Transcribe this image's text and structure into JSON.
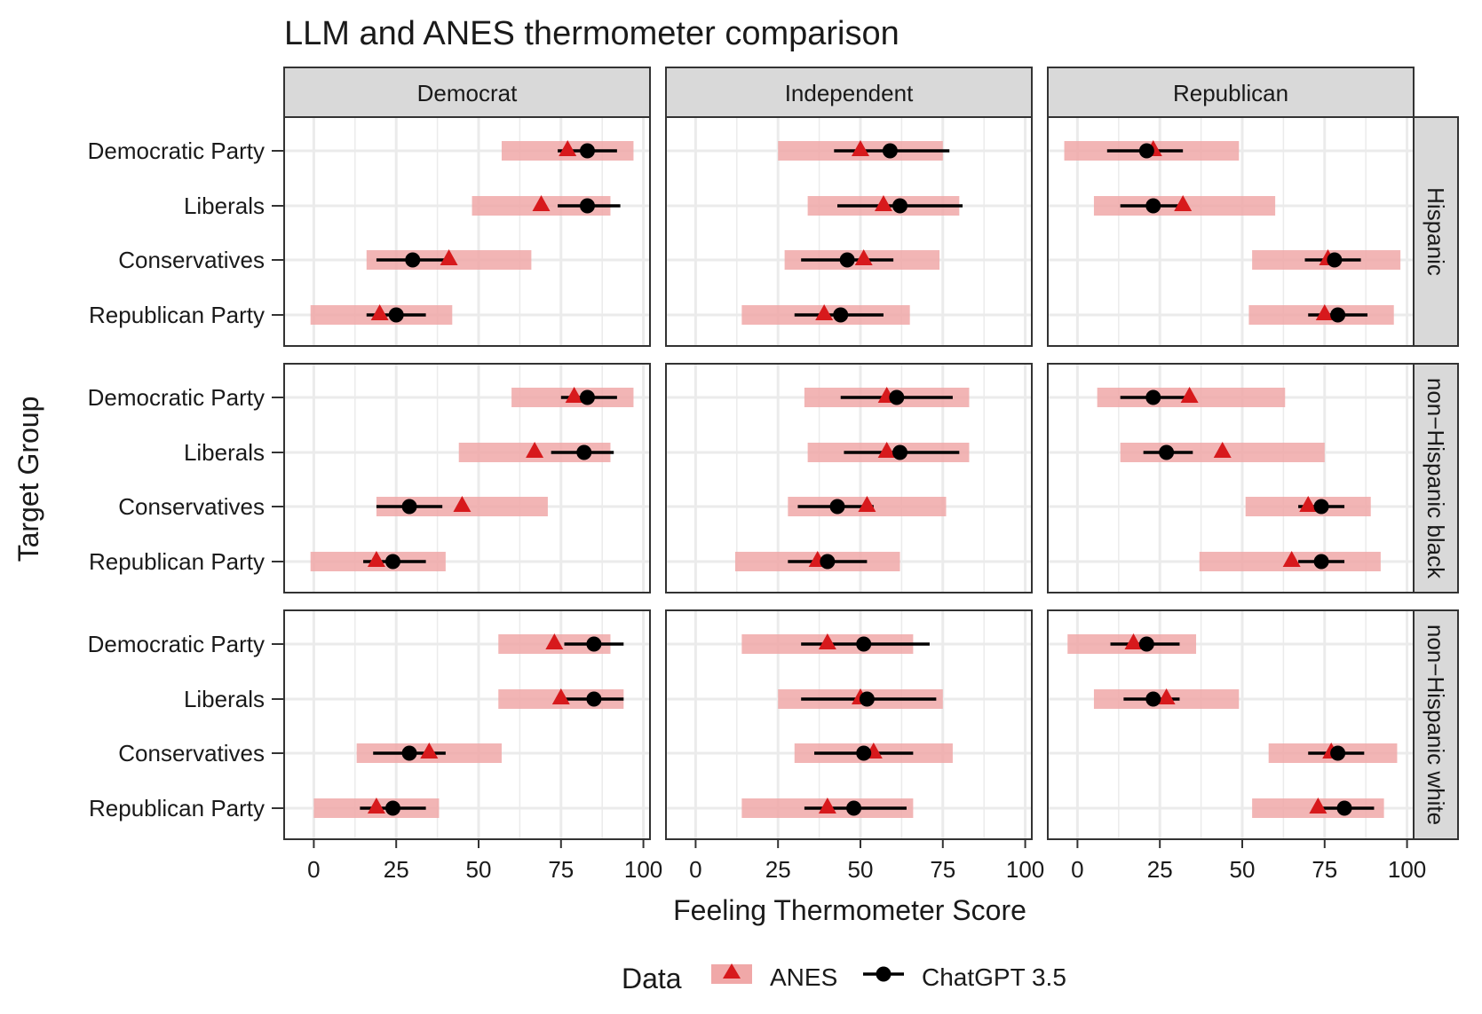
{
  "chart_data": {
    "type": "dot-range",
    "title": "LLM and ANES thermometer comparison",
    "xlabel": "Feeling Thermometer Score",
    "ylabel": "Target Group",
    "xlim": [
      -9,
      102
    ],
    "x_ticks": [
      0,
      25,
      50,
      75,
      100
    ],
    "x_tick_labels": [
      "0",
      "25",
      "50",
      "75",
      "100"
    ],
    "grid": true,
    "legend": {
      "title": "Data",
      "position": "bottom",
      "entries": [
        "ANES",
        "ChatGPT 3.5"
      ]
    },
    "col_facets": [
      "Democrat",
      "Independent",
      "Republican"
    ],
    "row_facets": [
      "Hispanic",
      "non−Hispanic black",
      "non−Hispanic white"
    ],
    "categories": [
      "Democratic Party",
      "Liberals",
      "Conservatives",
      "Republican Party"
    ],
    "colors": {
      "anes": "#d7191c",
      "anes_band": "#f0a8a8",
      "chatgpt": "#000000",
      "strip": "#d9d9d9",
      "grid": "#ebebeb"
    },
    "panels": [
      {
        "row": "Hispanic",
        "col": "Democrat",
        "items": [
          {
            "category": "Democratic Party",
            "anes": {
              "value": 77,
              "low": 57,
              "high": 97
            },
            "chatgpt": {
              "value": 83,
              "low": 74,
              "high": 92
            }
          },
          {
            "category": "Liberals",
            "anes": {
              "value": 69,
              "low": 48,
              "high": 90
            },
            "chatgpt": {
              "value": 83,
              "low": 74,
              "high": 93
            }
          },
          {
            "category": "Conservatives",
            "anes": {
              "value": 41,
              "low": 16,
              "high": 66
            },
            "chatgpt": {
              "value": 30,
              "low": 19,
              "high": 41
            }
          },
          {
            "category": "Republican Party",
            "anes": {
              "value": 20,
              "low": -1,
              "high": 42
            },
            "chatgpt": {
              "value": 25,
              "low": 16,
              "high": 34
            }
          }
        ]
      },
      {
        "row": "Hispanic",
        "col": "Independent",
        "items": [
          {
            "category": "Democratic Party",
            "anes": {
              "value": 50,
              "low": 25,
              "high": 75
            },
            "chatgpt": {
              "value": 59,
              "low": 42,
              "high": 77
            }
          },
          {
            "category": "Liberals",
            "anes": {
              "value": 57,
              "low": 34,
              "high": 80
            },
            "chatgpt": {
              "value": 62,
              "low": 43,
              "high": 81
            }
          },
          {
            "category": "Conservatives",
            "anes": {
              "value": 51,
              "low": 27,
              "high": 74
            },
            "chatgpt": {
              "value": 46,
              "low": 32,
              "high": 60
            }
          },
          {
            "category": "Republican Party",
            "anes": {
              "value": 39,
              "low": 14,
              "high": 65
            },
            "chatgpt": {
              "value": 44,
              "low": 30,
              "high": 57
            }
          }
        ]
      },
      {
        "row": "Hispanic",
        "col": "Republican",
        "items": [
          {
            "category": "Democratic Party",
            "anes": {
              "value": 23,
              "low": -4,
              "high": 49
            },
            "chatgpt": {
              "value": 21,
              "low": 9,
              "high": 32
            }
          },
          {
            "category": "Liberals",
            "anes": {
              "value": 32,
              "low": 5,
              "high": 60
            },
            "chatgpt": {
              "value": 23,
              "low": 13,
              "high": 33
            }
          },
          {
            "category": "Conservatives",
            "anes": {
              "value": 76,
              "low": 53,
              "high": 98
            },
            "chatgpt": {
              "value": 78,
              "low": 69,
              "high": 86
            }
          },
          {
            "category": "Republican Party",
            "anes": {
              "value": 75,
              "low": 52,
              "high": 96
            },
            "chatgpt": {
              "value": 79,
              "low": 70,
              "high": 88
            }
          }
        ]
      },
      {
        "row": "non−Hispanic black",
        "col": "Democrat",
        "items": [
          {
            "category": "Democratic Party",
            "anes": {
              "value": 79,
              "low": 60,
              "high": 97
            },
            "chatgpt": {
              "value": 83,
              "low": 75,
              "high": 92
            }
          },
          {
            "category": "Liberals",
            "anes": {
              "value": 67,
              "low": 44,
              "high": 90
            },
            "chatgpt": {
              "value": 82,
              "low": 72,
              "high": 91
            }
          },
          {
            "category": "Conservatives",
            "anes": {
              "value": 45,
              "low": 19,
              "high": 71
            },
            "chatgpt": {
              "value": 29,
              "low": 19,
              "high": 39
            }
          },
          {
            "category": "Republican Party",
            "anes": {
              "value": 19,
              "low": -1,
              "high": 40
            },
            "chatgpt": {
              "value": 24,
              "low": 15,
              "high": 34
            }
          }
        ]
      },
      {
        "row": "non−Hispanic black",
        "col": "Independent",
        "items": [
          {
            "category": "Democratic Party",
            "anes": {
              "value": 58,
              "low": 33,
              "high": 83
            },
            "chatgpt": {
              "value": 61,
              "low": 44,
              "high": 78
            }
          },
          {
            "category": "Liberals",
            "anes": {
              "value": 58,
              "low": 34,
              "high": 83
            },
            "chatgpt": {
              "value": 62,
              "low": 45,
              "high": 80
            }
          },
          {
            "category": "Conservatives",
            "anes": {
              "value": 52,
              "low": 28,
              "high": 76
            },
            "chatgpt": {
              "value": 43,
              "low": 31,
              "high": 54
            }
          },
          {
            "category": "Republican Party",
            "anes": {
              "value": 37,
              "low": 12,
              "high": 62
            },
            "chatgpt": {
              "value": 40,
              "low": 28,
              "high": 52
            }
          }
        ]
      },
      {
        "row": "non−Hispanic black",
        "col": "Republican",
        "items": [
          {
            "category": "Democratic Party",
            "anes": {
              "value": 34,
              "low": 6,
              "high": 63
            },
            "chatgpt": {
              "value": 23,
              "low": 13,
              "high": 33
            }
          },
          {
            "category": "Liberals",
            "anes": {
              "value": 44,
              "low": 13,
              "high": 75
            },
            "chatgpt": {
              "value": 27,
              "low": 20,
              "high": 35
            }
          },
          {
            "category": "Conservatives",
            "anes": {
              "value": 70,
              "low": 51,
              "high": 89
            },
            "chatgpt": {
              "value": 74,
              "low": 67,
              "high": 81
            }
          },
          {
            "category": "Republican Party",
            "anes": {
              "value": 65,
              "low": 37,
              "high": 92
            },
            "chatgpt": {
              "value": 74,
              "low": 67,
              "high": 81
            }
          }
        ]
      },
      {
        "row": "non−Hispanic white",
        "col": "Democrat",
        "items": [
          {
            "category": "Democratic Party",
            "anes": {
              "value": 73,
              "low": 56,
              "high": 90
            },
            "chatgpt": {
              "value": 85,
              "low": 76,
              "high": 94
            }
          },
          {
            "category": "Liberals",
            "anes": {
              "value": 75,
              "low": 56,
              "high": 94
            },
            "chatgpt": {
              "value": 85,
              "low": 76,
              "high": 94
            }
          },
          {
            "category": "Conservatives",
            "anes": {
              "value": 35,
              "low": 13,
              "high": 57
            },
            "chatgpt": {
              "value": 29,
              "low": 18,
              "high": 40
            }
          },
          {
            "category": "Republican Party",
            "anes": {
              "value": 19,
              "low": 0,
              "high": 38
            },
            "chatgpt": {
              "value": 24,
              "low": 14,
              "high": 34
            }
          }
        ]
      },
      {
        "row": "non−Hispanic white",
        "col": "Independent",
        "items": [
          {
            "category": "Democratic Party",
            "anes": {
              "value": 40,
              "low": 14,
              "high": 66
            },
            "chatgpt": {
              "value": 51,
              "low": 32,
              "high": 71
            }
          },
          {
            "category": "Liberals",
            "anes": {
              "value": 50,
              "low": 25,
              "high": 75
            },
            "chatgpt": {
              "value": 52,
              "low": 32,
              "high": 73
            }
          },
          {
            "category": "Conservatives",
            "anes": {
              "value": 54,
              "low": 30,
              "high": 78
            },
            "chatgpt": {
              "value": 51,
              "low": 36,
              "high": 66
            }
          },
          {
            "category": "Republican Party",
            "anes": {
              "value": 40,
              "low": 14,
              "high": 66
            },
            "chatgpt": {
              "value": 48,
              "low": 33,
              "high": 64
            }
          }
        ]
      },
      {
        "row": "non−Hispanic white",
        "col": "Republican",
        "items": [
          {
            "category": "Democratic Party",
            "anes": {
              "value": 17,
              "low": -3,
              "high": 36
            },
            "chatgpt": {
              "value": 21,
              "low": 10,
              "high": 31
            }
          },
          {
            "category": "Liberals",
            "anes": {
              "value": 27,
              "low": 5,
              "high": 49
            },
            "chatgpt": {
              "value": 23,
              "low": 14,
              "high": 31
            }
          },
          {
            "category": "Conservatives",
            "anes": {
              "value": 77,
              "low": 58,
              "high": 97
            },
            "chatgpt": {
              "value": 79,
              "low": 70,
              "high": 87
            }
          },
          {
            "category": "Republican Party",
            "anes": {
              "value": 73,
              "low": 53,
              "high": 93
            },
            "chatgpt": {
              "value": 81,
              "low": 73,
              "high": 90
            }
          }
        ]
      }
    ]
  }
}
